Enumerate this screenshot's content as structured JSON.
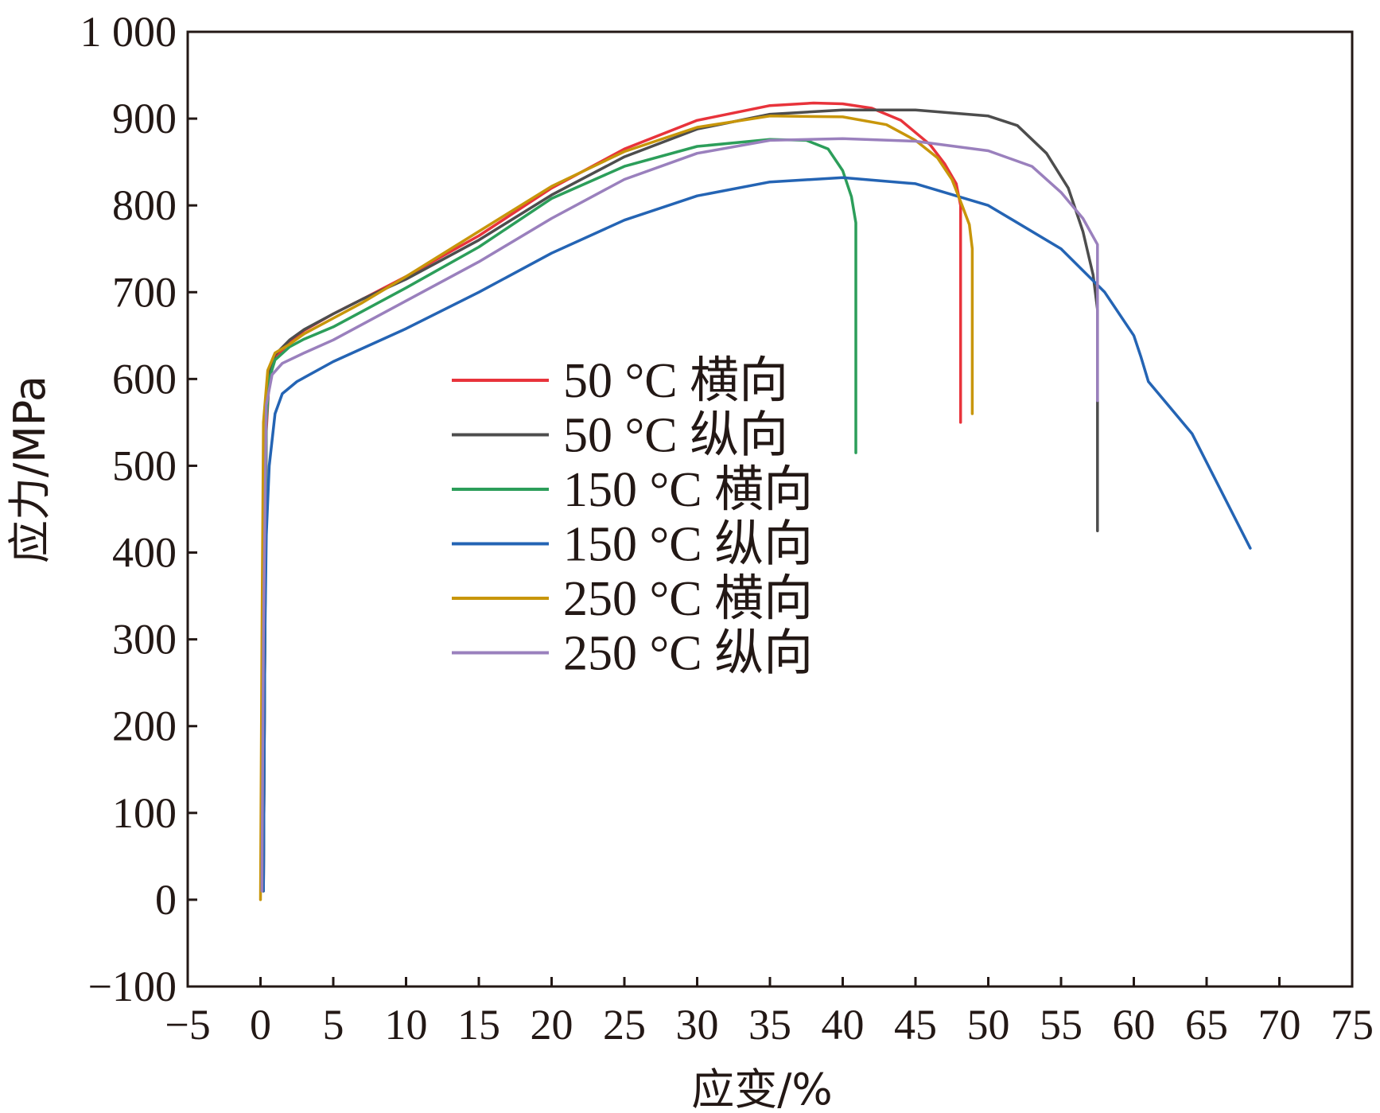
{
  "chart_data": {
    "type": "line",
    "title": "",
    "xlabel": "应变/%",
    "ylabel": "应力/MPa",
    "xlim": [
      -5,
      75
    ],
    "ylim": [
      -100,
      1000
    ],
    "xticks": [
      -5,
      0,
      5,
      10,
      15,
      20,
      25,
      30,
      35,
      40,
      45,
      50,
      55,
      60,
      65,
      70,
      75
    ],
    "yticks": [
      -100,
      0,
      100,
      200,
      300,
      400,
      500,
      600,
      700,
      800,
      900,
      1000
    ],
    "xtick_labels": [
      "−5",
      "0",
      "5",
      "10",
      "15",
      "20",
      "25",
      "30",
      "35",
      "40",
      "45",
      "50",
      "55",
      "60",
      "65",
      "70",
      "75"
    ],
    "ytick_labels": [
      "−100",
      "0",
      "100",
      "200",
      "300",
      "400",
      "500",
      "600",
      "700",
      "800",
      "900",
      "1 000"
    ],
    "grid": false,
    "legend_position": "center",
    "series": [
      {
        "name": "50 °C 横向",
        "color": "#e8333b",
        "points": [
          [
            0.2,
            10
          ],
          [
            0.3,
            300
          ],
          [
            0.4,
            540
          ],
          [
            0.6,
            600
          ],
          [
            1,
            625
          ],
          [
            2,
            642
          ],
          [
            3,
            656
          ],
          [
            5,
            675
          ],
          [
            7,
            692
          ],
          [
            10,
            718
          ],
          [
            15,
            765
          ],
          [
            20,
            820
          ],
          [
            25,
            865
          ],
          [
            30,
            898
          ],
          [
            35,
            915
          ],
          [
            38,
            918
          ],
          [
            40,
            917
          ],
          [
            42,
            912
          ],
          [
            44,
            898
          ],
          [
            46,
            870
          ],
          [
            47,
            848
          ],
          [
            47.8,
            825
          ],
          [
            48.1,
            800
          ],
          [
            48.1,
            550
          ]
        ]
      },
      {
        "name": "50 °C 纵向",
        "color": "#4d4d4d",
        "points": [
          [
            0.2,
            10
          ],
          [
            0.3,
            300
          ],
          [
            0.4,
            560
          ],
          [
            0.6,
            605
          ],
          [
            1,
            628
          ],
          [
            2,
            645
          ],
          [
            3,
            657
          ],
          [
            5,
            675
          ],
          [
            7,
            692
          ],
          [
            10,
            715
          ],
          [
            15,
            760
          ],
          [
            20,
            812
          ],
          [
            25,
            856
          ],
          [
            30,
            888
          ],
          [
            35,
            905
          ],
          [
            40,
            910
          ],
          [
            45,
            910
          ],
          [
            50,
            903
          ],
          [
            52,
            892
          ],
          [
            54,
            860
          ],
          [
            55.5,
            820
          ],
          [
            56.5,
            770
          ],
          [
            57.2,
            720
          ],
          [
            57.5,
            680
          ],
          [
            57.5,
            425
          ]
        ]
      },
      {
        "name": "150 °C 横向",
        "color": "#2c9e5a",
        "points": [
          [
            0.2,
            10
          ],
          [
            0.3,
            300
          ],
          [
            0.4,
            550
          ],
          [
            0.6,
            600
          ],
          [
            1,
            622
          ],
          [
            2,
            637
          ],
          [
            3,
            646
          ],
          [
            5,
            660
          ],
          [
            7,
            678
          ],
          [
            10,
            705
          ],
          [
            15,
            752
          ],
          [
            20,
            808
          ],
          [
            25,
            845
          ],
          [
            30,
            868
          ],
          [
            35,
            876
          ],
          [
            37.5,
            875
          ],
          [
            39,
            865
          ],
          [
            40,
            840
          ],
          [
            40.6,
            810
          ],
          [
            40.9,
            780
          ],
          [
            40.9,
            515
          ]
        ]
      },
      {
        "name": "150 °C 纵向",
        "color": "#2464b4",
        "points": [
          [
            0.2,
            10
          ],
          [
            0.3,
            300
          ],
          [
            0.4,
            420
          ],
          [
            0.6,
            500
          ],
          [
            1,
            560
          ],
          [
            1.5,
            583
          ],
          [
            2.5,
            597
          ],
          [
            5,
            620
          ],
          [
            10,
            658
          ],
          [
            15,
            700
          ],
          [
            20,
            745
          ],
          [
            25,
            783
          ],
          [
            30,
            811
          ],
          [
            35,
            827
          ],
          [
            40,
            832
          ],
          [
            45,
            825
          ],
          [
            50,
            800
          ],
          [
            55,
            750
          ],
          [
            58,
            700
          ],
          [
            60,
            650
          ],
          [
            60.5,
            625
          ],
          [
            61,
            597
          ],
          [
            64,
            537
          ],
          [
            68,
            405
          ]
        ]
      },
      {
        "name": "250 °C 横向",
        "color": "#c8960a",
        "points": [
          [
            0,
            0
          ],
          [
            0.1,
            300
          ],
          [
            0.2,
            550
          ],
          [
            0.5,
            610
          ],
          [
            1,
            630
          ],
          [
            2,
            640
          ],
          [
            3,
            652
          ],
          [
            5,
            670
          ],
          [
            7,
            688
          ],
          [
            10,
            718
          ],
          [
            15,
            770
          ],
          [
            20,
            822
          ],
          [
            25,
            862
          ],
          [
            30,
            890
          ],
          [
            35,
            903
          ],
          [
            40,
            902
          ],
          [
            43,
            893
          ],
          [
            45,
            875
          ],
          [
            46.5,
            855
          ],
          [
            47.5,
            830
          ],
          [
            48.2,
            800
          ],
          [
            48.7,
            778
          ],
          [
            48.9,
            750
          ],
          [
            48.9,
            560
          ]
        ]
      },
      {
        "name": "250 °C 纵向",
        "color": "#9a80bd",
        "points": [
          [
            0.1,
            10
          ],
          [
            0.2,
            300
          ],
          [
            0.4,
            570
          ],
          [
            0.8,
            605
          ],
          [
            1.5,
            618
          ],
          [
            3,
            630
          ],
          [
            5,
            645
          ],
          [
            10,
            690
          ],
          [
            15,
            735
          ],
          [
            20,
            785
          ],
          [
            25,
            830
          ],
          [
            30,
            860
          ],
          [
            35,
            875
          ],
          [
            40,
            877
          ],
          [
            45,
            874
          ],
          [
            50,
            863
          ],
          [
            53,
            845
          ],
          [
            55,
            815
          ],
          [
            56.5,
            785
          ],
          [
            57.5,
            755
          ],
          [
            57.5,
            575
          ]
        ]
      }
    ]
  }
}
